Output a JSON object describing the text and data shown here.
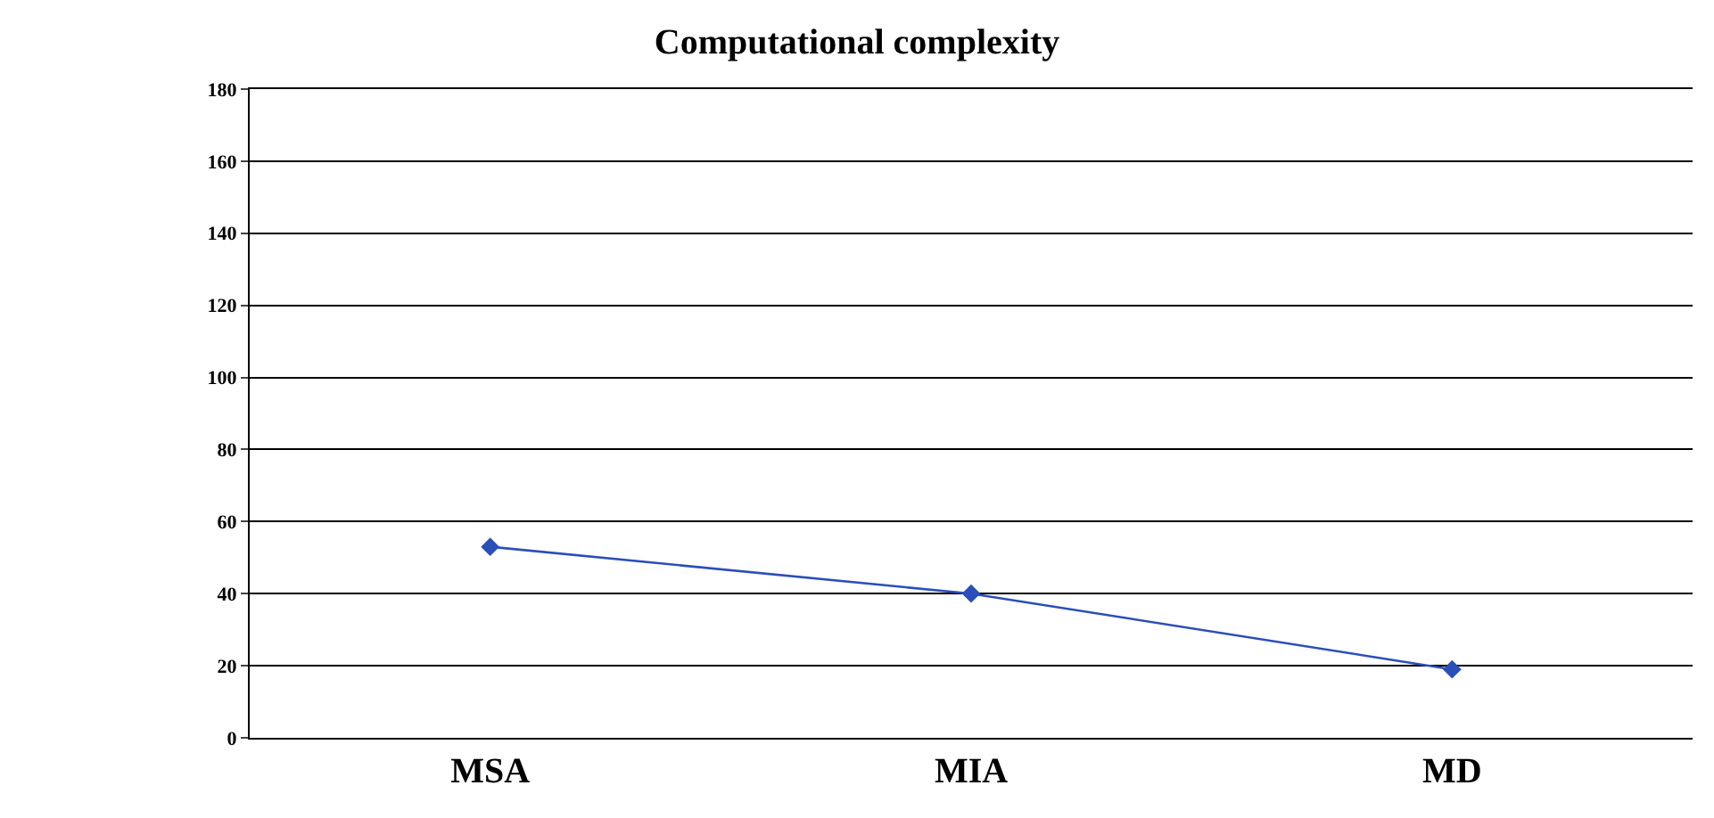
{
  "chart_data": {
    "type": "line",
    "title": "Computational complexity",
    "categories": [
      "MSA",
      "MIA",
      "MD"
    ],
    "series": [
      {
        "color": "#2b4fb8",
        "values": [
          53,
          40,
          19
        ]
      }
    ],
    "ylim": [
      0,
      180
    ],
    "yticks": [
      0,
      20,
      40,
      60,
      80,
      100,
      120,
      140,
      160,
      180
    ],
    "grid": "y",
    "marker": "diamond",
    "line_style": "solid"
  }
}
